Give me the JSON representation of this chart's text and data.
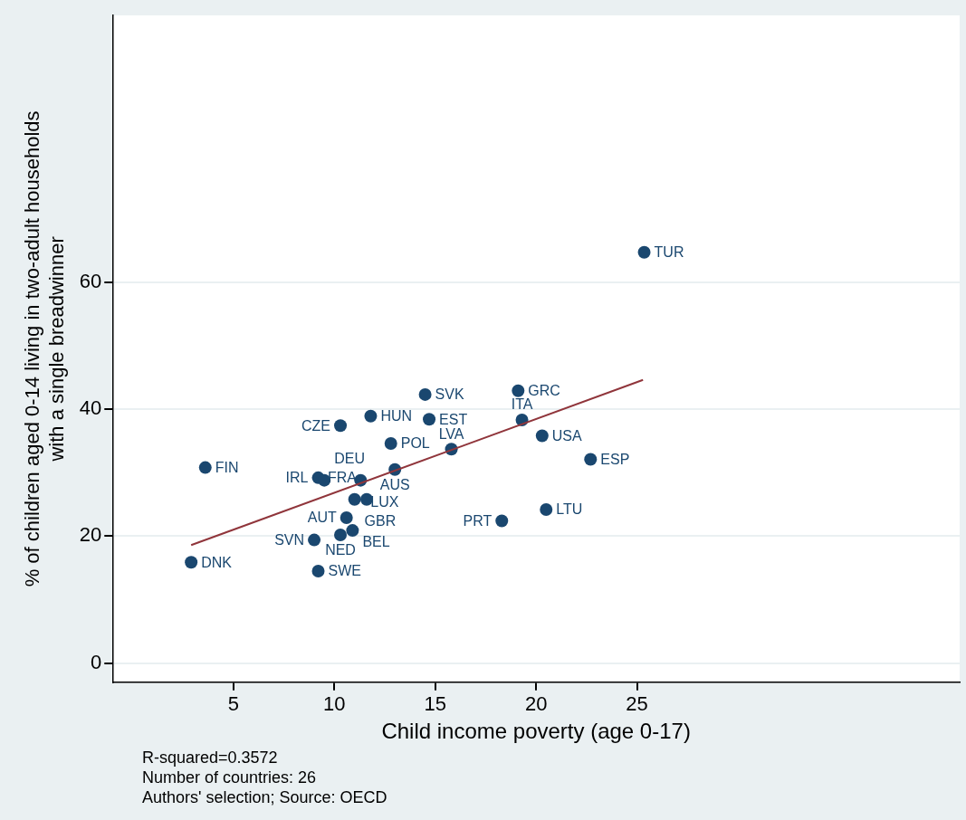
{
  "chart_data": {
    "type": "scatter",
    "xlabel": "Child income poverty (age 0-17)",
    "ylabel": "% of children aged 0-14 living in two-adult households\nwith a single breadwinner",
    "xlim": [
      -1,
      41
    ],
    "ylim": [
      -3,
      102
    ],
    "xticks": [
      5,
      10,
      15,
      20,
      25
    ],
    "yticks": [
      0,
      20,
      40,
      60
    ],
    "grid": "y",
    "legend": false,
    "marker": "circle",
    "series": [
      {
        "color": "#1a476f",
        "x": [
          25.36,
          19.11,
          14.5,
          11.8,
          14.7,
          10.3,
          19.3,
          20.3,
          12.8,
          15.8,
          22.7,
          3.6,
          13.0,
          9.2,
          9.5,
          11.3,
          11.0,
          11.6,
          10.6,
          10.3,
          10.9,
          9.0,
          9.2,
          2.9,
          18.3,
          20.5
        ],
        "values": [
          64.7,
          42.9,
          42.3,
          38.9,
          38.4,
          37.4,
          38.3,
          35.8,
          34.6,
          33.7,
          32.1,
          30.8,
          30.5,
          29.2,
          28.8,
          28.8,
          25.8,
          25.8,
          22.9,
          20.2,
          20.9,
          19.4,
          14.5,
          15.9,
          22.4,
          24.2
        ]
      },
      {
        "type": "line",
        "color": "#90353b",
        "marker": "none",
        "x": [
          2.9,
          25.3
        ],
        "values": [
          18.6,
          44.6
        ]
      }
    ],
    "annotations": [
      {
        "text": "TUR",
        "x": 25.36,
        "y": 64.7
      },
      {
        "text": "GRC",
        "x": 19.11,
        "y": 42.9
      },
      {
        "text": "SVK",
        "x": 14.5,
        "y": 42.3
      },
      {
        "text": "HUN",
        "x": 11.8,
        "y": 38.9
      },
      {
        "text": "EST",
        "x": 14.7,
        "y": 38.4
      },
      {
        "text": "CZE",
        "x": 10.3,
        "y": 37.4
      },
      {
        "text": "ITA",
        "x": 19.3,
        "y": 38.3
      },
      {
        "text": "USA",
        "x": 20.3,
        "y": 35.8
      },
      {
        "text": "POL",
        "x": 12.8,
        "y": 34.6
      },
      {
        "text": "LVA",
        "x": 15.8,
        "y": 33.7
      },
      {
        "text": "ESP",
        "x": 22.7,
        "y": 32.1
      },
      {
        "text": "FIN",
        "x": 3.6,
        "y": 30.8
      },
      {
        "text": "AUS",
        "x": 13.0,
        "y": 30.5
      },
      {
        "text": "IRL",
        "x": 9.2,
        "y": 29.2
      },
      {
        "text": "DEU",
        "x": 9.5,
        "y": 28.8
      },
      {
        "text": "LUX",
        "x": 11.3,
        "y": 28.8
      },
      {
        "text": "GBR",
        "x": 11.0,
        "y": 25.8
      },
      {
        "text": "FRA",
        "x": 11.6,
        "y": 25.8
      },
      {
        "text": "AUT",
        "x": 10.6,
        "y": 22.9
      },
      {
        "text": "NED",
        "x": 10.3,
        "y": 20.2
      },
      {
        "text": "BEL",
        "x": 10.9,
        "y": 20.9
      },
      {
        "text": "SVN",
        "x": 9.0,
        "y": 19.4
      },
      {
        "text": "SWE",
        "x": 9.2,
        "y": 14.5
      },
      {
        "text": "DNK",
        "x": 2.9,
        "y": 15.9
      },
      {
        "text": "PRT",
        "x": 18.3,
        "y": 22.4
      },
      {
        "text": "LTU",
        "x": 20.5,
        "y": 24.2
      },
      "R-squared=0.3572",
      "Number of countries: 26",
      "Authors' selection; Source: OECD"
    ]
  }
}
